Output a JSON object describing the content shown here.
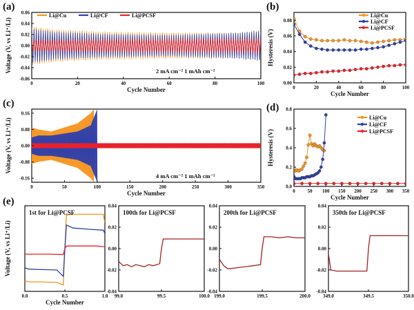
{
  "figure": {
    "colors": {
      "cu": "#f5941f",
      "cf": "#2f3fa8",
      "pcsf": "#e8222b"
    },
    "legend_labels": [
      "Li@Cu",
      "Li@CF",
      "Li@PCSF"
    ]
  },
  "chart_data": [
    {
      "id": "a",
      "panel_label": "(a)",
      "type": "line",
      "xlabel": "Cycle Number",
      "ylabel": "Voltage (V, vs Li⁺/Li)",
      "xlim": [
        0,
        100
      ],
      "ylim": [
        -0.06,
        0.06
      ],
      "xticks": [
        "0",
        "20",
        "40",
        "60",
        "80",
        "100"
      ],
      "yticks": [
        "-0.06",
        "-0.04",
        "-0.02",
        "0.00",
        "0.02",
        "0.04",
        "0.06"
      ],
      "annotation": "2 mA cm⁻²  1 mAh cm⁻²",
      "legend": [
        "Li@Cu",
        "Li@CF",
        "Li@PCSF"
      ],
      "series": [
        {
          "name": "Li@Cu",
          "color": "#f5941f",
          "envelope_x": [
            0,
            10,
            30,
            60,
            90,
            100
          ],
          "envelope_y": [
            0.036,
            0.03,
            0.026,
            0.024,
            0.024,
            0.026
          ]
        },
        {
          "name": "Li@CF",
          "color": "#2f3fa8",
          "envelope_x": [
            0,
            10,
            30,
            60,
            90,
            100
          ],
          "envelope_y": [
            0.032,
            0.026,
            0.022,
            0.02,
            0.024,
            0.028
          ]
        },
        {
          "name": "Li@PCSF",
          "color": "#e8222b",
          "envelope_x": [
            0,
            10,
            30,
            60,
            90,
            100
          ],
          "envelope_y": [
            0.011,
            0.011,
            0.012,
            0.013,
            0.013,
            0.014
          ]
        }
      ]
    },
    {
      "id": "b",
      "panel_label": "(b)",
      "type": "line",
      "xlabel": "Cycle Number",
      "ylabel": "Hysteresis (V)",
      "xlim": [
        0,
        100
      ],
      "ylim": [
        0,
        0.09
      ],
      "xticks": [
        "0",
        "20",
        "40",
        "60",
        "80",
        "100"
      ],
      "yticks": [
        "0.00",
        "0.02",
        "0.04",
        "0.06",
        "0.08"
      ],
      "legend": [
        "Li@Cu",
        "Li@CF",
        "Li@PCSF"
      ],
      "x": [
        0,
        5,
        10,
        15,
        20,
        25,
        30,
        35,
        40,
        45,
        50,
        55,
        60,
        65,
        70,
        75,
        80,
        85,
        90,
        95,
        100
      ],
      "series": [
        {
          "name": "Li@Cu",
          "color": "#f5941f",
          "values": [
            0.082,
            0.066,
            0.059,
            0.056,
            0.055,
            0.054,
            0.054,
            0.054,
            0.054,
            0.055,
            0.054,
            0.054,
            0.053,
            0.052,
            0.051,
            0.052,
            0.053,
            0.054,
            0.055,
            0.055,
            0.056
          ]
        },
        {
          "name": "Li@CF",
          "color": "#2f3fa8",
          "values": [
            0.075,
            0.062,
            0.052,
            0.047,
            0.044,
            0.043,
            0.042,
            0.042,
            0.042,
            0.042,
            0.042,
            0.042,
            0.043,
            0.043,
            0.044,
            0.045,
            0.046,
            0.048,
            0.05,
            0.052,
            0.054
          ]
        },
        {
          "name": "Li@PCSF",
          "color": "#e8222b",
          "values": [
            0.01,
            0.011,
            0.012,
            0.012,
            0.013,
            0.014,
            0.014,
            0.015,
            0.015,
            0.016,
            0.016,
            0.017,
            0.018,
            0.018,
            0.019,
            0.02,
            0.021,
            0.022,
            0.022,
            0.023,
            0.023
          ]
        }
      ]
    },
    {
      "id": "c",
      "panel_label": "(c)",
      "type": "line",
      "xlabel": "Cycle Number",
      "ylabel": "Voltage (V, vs Li⁺/Li)",
      "xlim": [
        0,
        350
      ],
      "ylim": [
        -0.18,
        0.18
      ],
      "xticks": [
        "0",
        "50",
        "100",
        "150",
        "200",
        "250",
        "300",
        "350"
      ],
      "yticks": [
        "-0.16",
        "-0.08",
        "0.00",
        "0.08",
        "0.16"
      ],
      "annotation": "4 mA cm⁻²  1 mAh cm⁻²",
      "series": [
        {
          "name": "Li@Cu",
          "color": "#f5941f",
          "envelope_x": [
            0,
            10,
            30,
            50,
            70,
            90,
            95
          ],
          "envelope_y": [
            0.09,
            0.08,
            0.07,
            0.09,
            0.11,
            0.16,
            0.18
          ]
        },
        {
          "name": "Li@CF",
          "color": "#2f3fa8",
          "envelope_x": [
            0,
            10,
            30,
            50,
            70,
            90,
            100
          ],
          "envelope_y": [
            0.04,
            0.05,
            0.05,
            0.06,
            0.07,
            0.1,
            0.18
          ]
        },
        {
          "name": "Li@PCSF",
          "color": "#e8222b",
          "envelope_x": [
            0,
            100,
            200,
            300,
            350
          ],
          "envelope_y": [
            0.012,
            0.012,
            0.012,
            0.012,
            0.012
          ]
        }
      ]
    },
    {
      "id": "d",
      "panel_label": "(d)",
      "type": "line",
      "xlabel": "Cycle Number",
      "ylabel": "Hysteresis (V)",
      "xlim": [
        0,
        350
      ],
      "ylim": [
        0,
        0.8
      ],
      "xticks": [
        "0",
        "50",
        "100",
        "150",
        "200",
        "250",
        "300",
        "350"
      ],
      "yticks": [
        "0.0",
        "0.2",
        "0.4",
        "0.6",
        "0.8"
      ],
      "legend": [
        "Li@Cu",
        "Li@CF",
        "Li@PCSF"
      ],
      "series": [
        {
          "name": "Li@Cu",
          "color": "#f5941f",
          "x": [
            0,
            5,
            10,
            15,
            20,
            25,
            30,
            35,
            40,
            45,
            50,
            55,
            60,
            65,
            70,
            75,
            80,
            85,
            90,
            95
          ],
          "values": [
            0.19,
            0.16,
            0.17,
            0.16,
            0.17,
            0.18,
            0.21,
            0.24,
            0.3,
            0.43,
            0.53,
            0.44,
            0.42,
            0.44,
            0.42,
            0.41,
            0.42,
            0.4,
            0.38,
            0.37
          ]
        },
        {
          "name": "Li@CF",
          "color": "#2f3fa8",
          "x": [
            0,
            5,
            10,
            15,
            20,
            25,
            30,
            35,
            40,
            45,
            50,
            55,
            60,
            65,
            70,
            75,
            80,
            85,
            90,
            95,
            100
          ],
          "values": [
            0.1,
            0.08,
            0.08,
            0.08,
            0.08,
            0.09,
            0.09,
            0.09,
            0.1,
            0.1,
            0.1,
            0.11,
            0.11,
            0.12,
            0.13,
            0.14,
            0.16,
            0.2,
            0.28,
            0.45,
            0.74
          ]
        },
        {
          "name": "Li@PCSF",
          "color": "#e8222b",
          "x": [
            0,
            25,
            50,
            75,
            100,
            125,
            150,
            175,
            200,
            225,
            250,
            275,
            300,
            325,
            350
          ],
          "values": [
            0.03,
            0.03,
            0.03,
            0.03,
            0.03,
            0.03,
            0.03,
            0.03,
            0.03,
            0.03,
            0.03,
            0.03,
            0.03,
            0.03,
            0.03
          ]
        }
      ]
    },
    {
      "id": "e1",
      "panel_label": "(e)",
      "type": "line",
      "title": "1st for Li@PCSF",
      "xlabel": "Cycle Number",
      "ylabel": "Voltage (V, vs Li⁺/Li)",
      "xlim": [
        0.0,
        1.0
      ],
      "ylim": [
        -0.1,
        0.1
      ],
      "xticks": [
        "0.0",
        "0.5",
        "1.0"
      ],
      "yticks": [],
      "series": [
        {
          "name": "Li@Cu",
          "color": "#f5941f",
          "x": [
            0,
            0.05,
            0.2,
            0.4,
            0.48,
            0.5,
            0.52,
            0.6,
            0.8,
            0.98,
            1.0
          ],
          "values": [
            -0.075,
            -0.078,
            -0.078,
            -0.079,
            -0.085,
            0.0,
            0.078,
            0.08,
            0.08,
            0.08,
            0.06
          ]
        },
        {
          "name": "Li@CF",
          "color": "#2f3fa8",
          "x": [
            0,
            0.05,
            0.2,
            0.4,
            0.48,
            0.5,
            0.52,
            0.6,
            0.8,
            0.98,
            1.0
          ],
          "values": [
            -0.045,
            -0.048,
            -0.049,
            -0.05,
            -0.065,
            0.0,
            0.055,
            0.048,
            0.045,
            0.043,
            0.035
          ]
        },
        {
          "name": "Li@PCSF",
          "color": "#e8222b",
          "x": [
            0,
            0.1,
            0.3,
            0.48,
            0.5,
            0.52,
            0.7,
            0.9,
            1.0
          ],
          "values": [
            -0.013,
            -0.013,
            -0.013,
            -0.014,
            0.0,
            0.006,
            0.006,
            0.006,
            0.004
          ]
        }
      ]
    },
    {
      "id": "e2",
      "type": "line",
      "title": "100th for Li@PCSF",
      "xlabel": "",
      "ylabel": "",
      "xlim": [
        99.0,
        100.0
      ],
      "ylim": [
        -0.04,
        0.04
      ],
      "xticks": [
        "99.0",
        "99.5",
        "100.0"
      ],
      "yticks": [
        "-0.04",
        "-0.02",
        "0.00",
        "0.02",
        "0.04"
      ],
      "series": [
        {
          "name": "Li@PCSF",
          "color": "#a32020",
          "x": [
            99.0,
            99.05,
            99.1,
            99.15,
            99.2,
            99.25,
            99.3,
            99.35,
            99.4,
            99.45,
            99.48,
            99.5,
            99.52,
            99.6,
            99.7,
            99.8,
            99.9,
            100.0
          ],
          "values": [
            -0.012,
            -0.016,
            -0.015,
            -0.017,
            -0.015,
            -0.016,
            -0.017,
            -0.015,
            -0.016,
            -0.015,
            -0.014,
            0.0,
            0.009,
            0.009,
            0.009,
            0.009,
            0.009,
            0.009
          ]
        }
      ]
    },
    {
      "id": "e3",
      "type": "line",
      "title": "200th for Li@PCSF",
      "xlabel": "",
      "ylabel": "",
      "xlim": [
        199.0,
        200.0
      ],
      "ylim": [
        -0.04,
        0.04
      ],
      "xticks": [
        "199.0",
        "199.5",
        "200.0"
      ],
      "yticks": [
        "-0.04",
        "-0.02",
        "0.00",
        "0.02",
        "0.04"
      ],
      "series": [
        {
          "name": "Li@PCSF",
          "color": "#a32020",
          "x": [
            199.0,
            199.05,
            199.1,
            199.2,
            199.3,
            199.4,
            199.48,
            199.5,
            199.52,
            199.6,
            199.7,
            199.8,
            199.9,
            200.0
          ],
          "values": [
            -0.01,
            -0.016,
            -0.019,
            -0.018,
            -0.017,
            -0.016,
            -0.015,
            0.0,
            0.011,
            0.011,
            0.01,
            0.011,
            0.01,
            0.01
          ]
        }
      ]
    },
    {
      "id": "e4",
      "type": "line",
      "title": "350th for Li@PCSF",
      "xlabel": "",
      "ylabel": "",
      "xlim": [
        349.0,
        350.0
      ],
      "ylim": [
        -0.04,
        0.04
      ],
      "xticks": [
        "349.0",
        "349.5",
        "350.0"
      ],
      "yticks": [
        "-0.04",
        "-0.02",
        "0.00",
        "0.02",
        "0.04"
      ],
      "series": [
        {
          "name": "Li@PCSF",
          "color": "#a32020",
          "x": [
            349.0,
            349.03,
            349.1,
            349.2,
            349.3,
            349.4,
            349.48,
            349.5,
            349.52,
            349.6,
            349.7,
            349.8,
            349.9,
            350.0
          ],
          "values": [
            -0.005,
            -0.02,
            -0.021,
            -0.021,
            -0.021,
            -0.021,
            -0.021,
            0.0,
            0.012,
            0.012,
            0.012,
            0.012,
            0.012,
            0.012
          ]
        }
      ]
    }
  ]
}
